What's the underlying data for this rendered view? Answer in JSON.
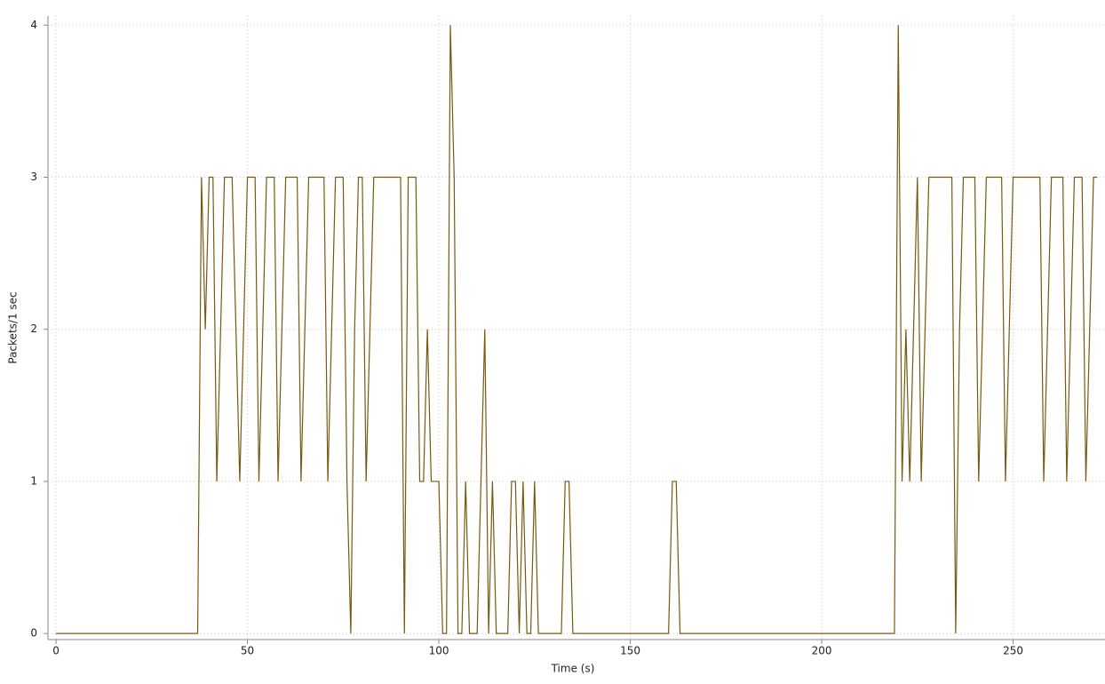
{
  "chart_data": {
    "type": "line",
    "title": null,
    "x_label": "Time (s)",
    "y_label": "Packets/1 sec",
    "xlim": [
      -2.1,
      274
    ],
    "ylim": [
      -0.04,
      4.06
    ],
    "xticks": [
      0,
      50,
      100,
      150,
      200,
      250
    ],
    "yticks": [
      0,
      1,
      2,
      3,
      4
    ],
    "grid": true,
    "x": [
      0,
      1,
      2,
      3,
      4,
      5,
      6,
      7,
      8,
      9,
      10,
      11,
      12,
      13,
      14,
      15,
      16,
      17,
      18,
      19,
      20,
      21,
      22,
      23,
      24,
      25,
      26,
      27,
      28,
      29,
      30,
      31,
      32,
      33,
      34,
      35,
      36,
      37,
      38,
      39,
      40,
      41,
      42,
      43,
      44,
      45,
      46,
      47,
      48,
      49,
      50,
      51,
      52,
      53,
      54,
      55,
      56,
      57,
      58,
      59,
      60,
      61,
      62,
      63,
      64,
      65,
      66,
      67,
      68,
      69,
      70,
      71,
      72,
      73,
      74,
      75,
      76,
      77,
      78,
      79,
      80,
      81,
      82,
      83,
      84,
      85,
      86,
      87,
      88,
      89,
      90,
      91,
      92,
      93,
      94,
      95,
      96,
      97,
      98,
      99,
      100,
      101,
      102,
      103,
      104,
      105,
      106,
      107,
      108,
      109,
      110,
      111,
      112,
      113,
      114,
      115,
      116,
      117,
      118,
      119,
      120,
      121,
      122,
      123,
      124,
      125,
      126,
      127,
      128,
      129,
      130,
      131,
      132,
      133,
      134,
      135,
      136,
      137,
      138,
      139,
      140,
      141,
      142,
      143,
      144,
      145,
      146,
      147,
      148,
      149,
      150,
      151,
      152,
      153,
      154,
      155,
      156,
      157,
      158,
      159,
      160,
      161,
      162,
      163,
      164,
      165,
      166,
      167,
      168,
      169,
      170,
      171,
      172,
      173,
      174,
      175,
      176,
      177,
      178,
      179,
      180,
      181,
      182,
      183,
      184,
      185,
      186,
      187,
      188,
      189,
      190,
      191,
      192,
      193,
      194,
      195,
      196,
      197,
      198,
      199,
      200,
      201,
      202,
      203,
      204,
      205,
      206,
      207,
      208,
      209,
      210,
      211,
      212,
      213,
      214,
      215,
      216,
      217,
      218,
      219,
      220,
      221,
      222,
      223,
      224,
      225,
      226,
      227,
      228,
      229,
      230,
      231,
      232,
      233,
      234,
      235,
      236,
      237,
      238,
      239,
      240,
      241,
      242,
      243,
      244,
      245,
      246,
      247,
      248,
      249,
      250,
      251,
      252,
      253,
      254,
      255,
      256,
      257,
      258,
      259,
      260,
      261,
      262,
      263,
      264,
      265,
      266,
      267,
      268,
      269,
      270,
      271,
      272
    ],
    "series": [
      {
        "name": null,
        "color": "#765a10",
        "values": [
          0,
          0,
          0,
          0,
          0,
          0,
          0,
          0,
          0,
          0,
          0,
          0,
          0,
          0,
          0,
          0,
          0,
          0,
          0,
          0,
          0,
          0,
          0,
          0,
          0,
          0,
          0,
          0,
          0,
          0,
          0,
          0,
          0,
          0,
          0,
          0,
          0,
          0,
          3,
          2,
          3,
          3,
          1,
          2,
          3,
          3,
          3,
          2,
          1,
          2,
          3,
          3,
          3,
          1,
          2,
          3,
          3,
          3,
          1,
          2,
          3,
          3,
          3,
          3,
          1,
          2,
          3,
          3,
          3,
          3,
          3,
          1,
          2,
          3,
          3,
          3,
          1,
          0,
          2,
          3,
          3,
          1,
          2,
          3,
          3,
          3,
          3,
          3,
          3,
          3,
          3,
          0,
          3,
          3,
          3,
          1,
          1,
          2,
          1,
          1,
          1,
          0,
          0,
          4,
          3,
          0,
          0,
          1,
          0,
          0,
          0,
          1,
          2,
          0,
          1,
          0,
          0,
          0,
          0,
          1,
          1,
          0,
          1,
          0,
          0,
          1,
          0,
          0,
          0,
          0,
          0,
          0,
          0,
          1,
          1,
          0,
          0,
          0,
          0,
          0,
          0,
          0,
          0,
          0,
          0,
          0,
          0,
          0,
          0,
          0,
          0,
          0,
          0,
          0,
          0,
          0,
          0,
          0,
          0,
          0,
          0,
          1,
          1,
          0,
          0,
          0,
          0,
          0,
          0,
          0,
          0,
          0,
          0,
          0,
          0,
          0,
          0,
          0,
          0,
          0,
          0,
          0,
          0,
          0,
          0,
          0,
          0,
          0,
          0,
          0,
          0,
          0,
          0,
          0,
          0,
          0,
          0,
          0,
          0,
          0,
          0,
          0,
          0,
          0,
          0,
          0,
          0,
          0,
          0,
          0,
          0,
          0,
          0,
          0,
          0,
          0,
          0,
          0,
          0,
          0,
          4,
          1,
          2,
          1,
          2,
          3,
          1,
          2,
          3,
          3,
          3,
          3,
          3,
          3,
          3,
          0,
          2,
          3,
          3,
          3,
          3,
          1,
          2,
          3,
          3,
          3,
          3,
          3,
          1,
          2,
          3,
          3,
          3,
          3,
          3,
          3,
          3,
          3,
          1,
          2,
          3,
          3,
          3,
          3,
          1,
          2,
          3,
          3,
          3,
          1,
          2,
          3,
          3
        ]
      }
    ]
  }
}
